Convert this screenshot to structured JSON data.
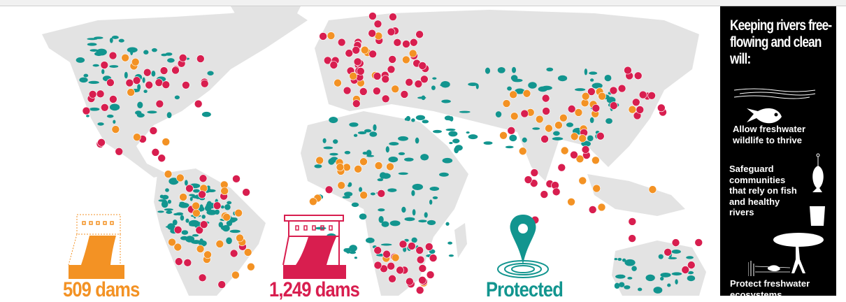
{
  "colors": {
    "protected_rivers": "#12958F",
    "land": "#E3E3E3",
    "dams_planned_orange": "#F39224",
    "dams_red": "#D81E4F",
    "panel_bg": "#000000"
  },
  "legend": {
    "orange_dams": {
      "value": "509 dams",
      "icon": "dam-outline-icon"
    },
    "red_dams": {
      "value": "1,249 dams",
      "icon": "dam-icon"
    },
    "protected": {
      "label": "Protected",
      "icon": "location-pin-icon"
    }
  },
  "panel": {
    "title": "Keeping rivers free-flowing and clean will:",
    "items": [
      {
        "text": "Allow freshwater wildlife to thrive",
        "icon": "fish-river-icon"
      },
      {
        "text": "Safeguard communities that rely on fish and healthy rivers",
        "icon": "fish-hook-glass-icon"
      },
      {
        "text": "Protect freshwater ecosystems",
        "icon": "tree-ecosystem-icon"
      }
    ]
  }
}
